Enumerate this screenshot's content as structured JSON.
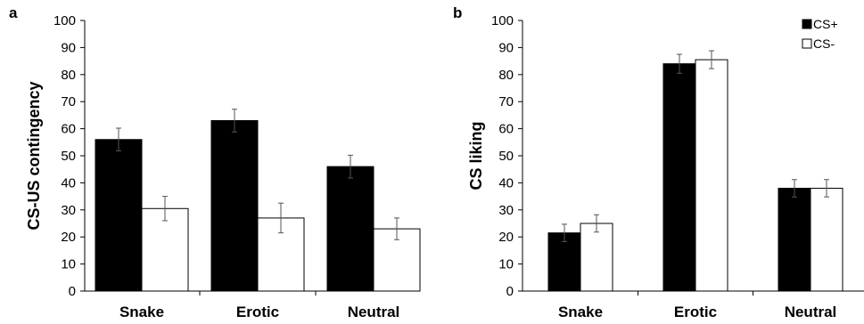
{
  "chart_data": [
    {
      "panel": "a",
      "type": "bar",
      "categories": [
        "Snake",
        "Erotic",
        "Neutral"
      ],
      "series": [
        {
          "name": "CS+",
          "color": "#000000",
          "values": [
            56,
            63,
            46
          ],
          "errors": [
            4.2,
            4.2,
            4.2
          ]
        },
        {
          "name": "CS-",
          "color": "#ffffff",
          "values": [
            30.5,
            27,
            23
          ],
          "errors": [
            4.5,
            5.5,
            4
          ]
        }
      ],
      "ylabel": "CS-US contingency",
      "ylim": [
        0,
        100
      ],
      "yticks": [
        0,
        10,
        20,
        30,
        40,
        50,
        60,
        70,
        80,
        90,
        100
      ],
      "legend": false,
      "grid": false
    },
    {
      "panel": "b",
      "type": "bar",
      "categories": [
        "Snake",
        "Erotic",
        "Neutral"
      ],
      "series": [
        {
          "name": "CS+",
          "color": "#000000",
          "values": [
            21.5,
            84,
            38
          ],
          "errors": [
            3.2,
            3.5,
            3.2
          ]
        },
        {
          "name": "CS-",
          "color": "#ffffff",
          "values": [
            25,
            85.5,
            38
          ],
          "errors": [
            3.2,
            3.3,
            3.2
          ]
        }
      ],
      "ylabel": "CS liking",
      "ylim": [
        0,
        100
      ],
      "yticks": [
        0,
        10,
        20,
        30,
        40,
        50,
        60,
        70,
        80,
        90,
        100
      ],
      "legend": true,
      "legend_placement": "top-right",
      "grid": false
    }
  ]
}
